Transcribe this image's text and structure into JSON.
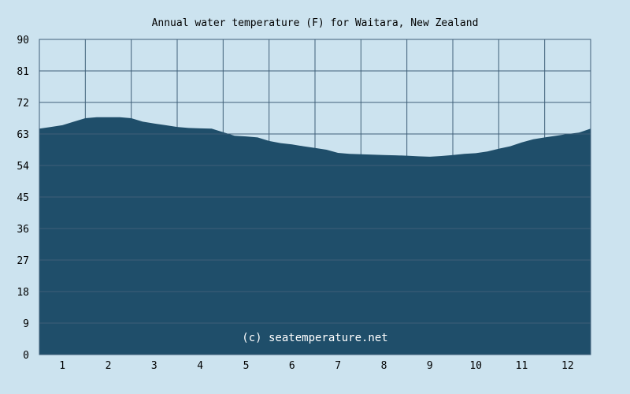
{
  "chart_data": {
    "type": "area",
    "title": "Annual water temperature (F) for Waitara, New Zealand",
    "watermark": "(c) seatemperature.net",
    "xlabel": "",
    "ylabel": "",
    "x_ticks": [
      "1",
      "2",
      "3",
      "4",
      "5",
      "6",
      "7",
      "8",
      "9",
      "10",
      "11",
      "12"
    ],
    "y_ticks": [
      "0",
      "9",
      "18",
      "27",
      "36",
      "45",
      "54",
      "63",
      "72",
      "81",
      "90"
    ],
    "ylim": [
      0,
      90
    ],
    "xlim": [
      0.5,
      12.5
    ],
    "grid": true,
    "series": [
      {
        "color": "#1f4e6a",
        "points": [
          [
            0.5,
            64.5
          ],
          [
            0.75,
            65.0
          ],
          [
            1.0,
            65.5
          ],
          [
            1.25,
            66.5
          ],
          [
            1.5,
            67.5
          ],
          [
            1.75,
            67.8
          ],
          [
            2.0,
            67.8
          ],
          [
            2.25,
            67.8
          ],
          [
            2.5,
            67.5
          ],
          [
            2.75,
            66.5
          ],
          [
            3.0,
            66.0
          ],
          [
            3.25,
            65.5
          ],
          [
            3.5,
            65.0
          ],
          [
            3.75,
            64.7
          ],
          [
            4.0,
            64.6
          ],
          [
            4.25,
            64.5
          ],
          [
            4.5,
            63.5
          ],
          [
            4.75,
            62.5
          ],
          [
            5.0,
            62.3
          ],
          [
            5.25,
            62.0
          ],
          [
            5.5,
            61.0
          ],
          [
            5.75,
            60.4
          ],
          [
            6.0,
            60.0
          ],
          [
            6.25,
            59.5
          ],
          [
            6.5,
            59.0
          ],
          [
            6.75,
            58.5
          ],
          [
            7.0,
            57.6
          ],
          [
            7.25,
            57.3
          ],
          [
            7.5,
            57.2
          ],
          [
            7.75,
            57.1
          ],
          [
            8.0,
            57.0
          ],
          [
            8.25,
            56.9
          ],
          [
            8.5,
            56.8
          ],
          [
            8.75,
            56.6
          ],
          [
            9.0,
            56.5
          ],
          [
            9.25,
            56.7
          ],
          [
            9.5,
            57.0
          ],
          [
            9.75,
            57.3
          ],
          [
            10.0,
            57.5
          ],
          [
            10.25,
            58.0
          ],
          [
            10.5,
            58.8
          ],
          [
            10.75,
            59.5
          ],
          [
            11.0,
            60.6
          ],
          [
            11.25,
            61.5
          ],
          [
            11.5,
            62.0
          ],
          [
            11.75,
            62.5
          ],
          [
            12.0,
            63.0
          ],
          [
            12.25,
            63.4
          ],
          [
            12.5,
            64.5
          ]
        ]
      }
    ]
  },
  "colors": {
    "background": "#cce3ef",
    "plot_background": "#cce3ef",
    "grid": "#3f5f78",
    "area": "#1f4e6a",
    "watermark": "#ffffff"
  }
}
